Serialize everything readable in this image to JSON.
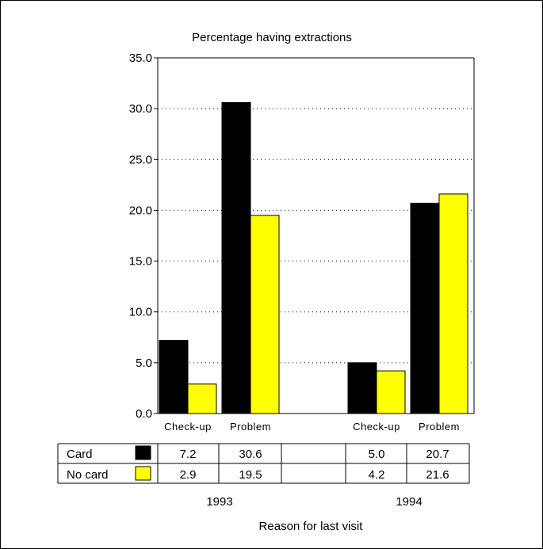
{
  "chart_data": {
    "type": "bar",
    "title": "Percentage having extractions",
    "xlabel": "Reason for last visit",
    "ylabel": "",
    "ylim": [
      0,
      35
    ],
    "y_ticks": [
      "0.0",
      "5.0",
      "10.0",
      "15.0",
      "20.0",
      "25.0",
      "30.0",
      "35.0"
    ],
    "grid": "horizontal dotted",
    "groups": [
      {
        "label": "1993",
        "categories": [
          "Check-up",
          "Problem"
        ]
      },
      {
        "label": "1994",
        "categories": [
          "Check-up",
          "Problem"
        ]
      }
    ],
    "categories": [
      "Check-up",
      "Problem",
      "Check-up",
      "Problem"
    ],
    "series": [
      {
        "name": "Card",
        "color": "#000000",
        "values": [
          7.2,
          30.6,
          5.0,
          20.7
        ],
        "labels": [
          "7.2",
          "30.6",
          "5.0",
          "20.7"
        ]
      },
      {
        "name": "No card",
        "color": "#ffff00",
        "values": [
          2.9,
          19.5,
          4.2,
          21.6
        ],
        "labels": [
          "2.9",
          "19.5",
          "4.2",
          "21.6"
        ]
      }
    ]
  }
}
